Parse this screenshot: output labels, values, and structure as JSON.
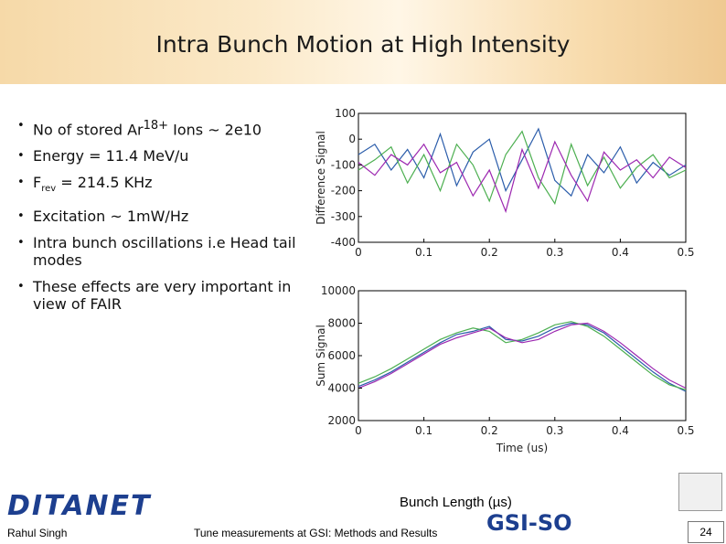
{
  "header": {
    "title": "Intra Bunch Motion at High Intensity"
  },
  "bullets": [
    [
      "No of stored Ar",
      "18+",
      " Ions ~ 2e10"
    ],
    [
      "Energy = 11.4 MeV/u"
    ],
    [
      "F",
      "rev",
      " = 214.5 KHz"
    ],
    [
      "Excitation ~ 1mW/Hz"
    ],
    [
      "Intra bunch oscillations i.e Head tail modes"
    ],
    [
      "These effects are very important in view of FAIR"
    ]
  ],
  "chart_data": [
    {
      "type": "line",
      "ylabel": "Difference Signal",
      "xlim": [
        0,
        0.5
      ],
      "xticks": [
        0,
        0.1,
        0.2,
        0.3,
        0.4,
        0.5
      ],
      "ylim": [
        -400,
        100
      ],
      "yticks": [
        100,
        0,
        -100,
        -200,
        -300,
        -400
      ],
      "x": [
        0,
        0.025,
        0.05,
        0.075,
        0.1,
        0.125,
        0.15,
        0.175,
        0.2,
        0.225,
        0.25,
        0.275,
        0.3,
        0.325,
        0.35,
        0.375,
        0.4,
        0.425,
        0.45,
        0.475,
        0.5
      ],
      "series": [
        {
          "color": "#2a5caa",
          "values": [
            -60,
            -20,
            -120,
            -40,
            -150,
            20,
            -180,
            -50,
            0,
            -200,
            -80,
            40,
            -160,
            -220,
            -60,
            -130,
            -30,
            -170,
            -90,
            -140,
            -100
          ]
        },
        {
          "color": "#4caf50",
          "values": [
            -120,
            -80,
            -30,
            -170,
            -60,
            -200,
            -20,
            -100,
            -240,
            -60,
            30,
            -150,
            -250,
            -20,
            -180,
            -70,
            -190,
            -110,
            -60,
            -150,
            -120
          ]
        },
        {
          "color": "#9c27b0",
          "values": [
            -90,
            -140,
            -60,
            -100,
            -20,
            -130,
            -90,
            -220,
            -120,
            -280,
            -40,
            -190,
            -10,
            -140,
            -240,
            -50,
            -120,
            -80,
            -150,
            -70,
            -110
          ]
        }
      ]
    },
    {
      "type": "line",
      "ylabel": "Sum Signal",
      "xlabel": "Time (us)",
      "xlim": [
        0,
        0.5
      ],
      "xticks": [
        0,
        0.1,
        0.2,
        0.3,
        0.4,
        0.5
      ],
      "ylim": [
        2000,
        10000
      ],
      "yticks": [
        10000,
        8000,
        6000,
        4000,
        2000
      ],
      "x": [
        0,
        0.025,
        0.05,
        0.075,
        0.1,
        0.125,
        0.15,
        0.175,
        0.2,
        0.225,
        0.25,
        0.275,
        0.3,
        0.325,
        0.35,
        0.375,
        0.4,
        0.425,
        0.45,
        0.475,
        0.5
      ],
      "series": [
        {
          "color": "#2a5caa",
          "values": [
            4100,
            4500,
            5000,
            5600,
            6200,
            6800,
            7300,
            7500,
            7800,
            7000,
            6900,
            7200,
            7700,
            8000,
            7900,
            7400,
            6600,
            5800,
            5000,
            4300,
            3800
          ]
        },
        {
          "color": "#4caf50",
          "values": [
            4300,
            4700,
            5200,
            5800,
            6400,
            7000,
            7400,
            7700,
            7500,
            6800,
            7000,
            7400,
            7900,
            8100,
            7800,
            7200,
            6400,
            5600,
            4800,
            4200,
            3900
          ]
        },
        {
          "color": "#9c27b0",
          "values": [
            4000,
            4400,
            4900,
            5500,
            6100,
            6700,
            7100,
            7400,
            7700,
            7100,
            6800,
            7000,
            7500,
            7900,
            8000,
            7500,
            6800,
            6000,
            5200,
            4500,
            4000
          ]
        }
      ]
    }
  ],
  "caption": "Bunch Length (µs)",
  "logos": [
    "DITANET",
    "GSI-SO"
  ],
  "footer": {
    "author": "Rahul Singh",
    "talk": "Tune measurements at GSI: Methods and Results",
    "page": "24"
  }
}
